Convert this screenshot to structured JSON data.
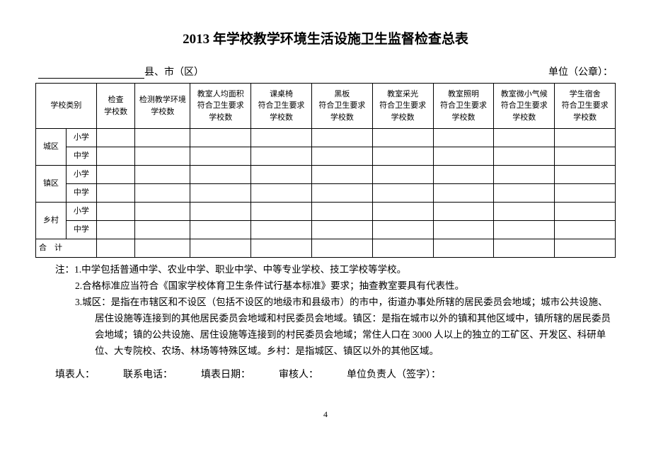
{
  "title": "2013 年学校教学环境生活设施卫生监督检查总表",
  "header": {
    "left_suffix": "县、市（区）",
    "right": "单位（公章）："
  },
  "columns": [
    "学校类别",
    "检查\n学校数",
    "检测教学环境\n学校数",
    "教室人均面积\n符合卫生要求\n学校数",
    "课桌椅\n符合卫生要求\n学校数",
    "黑板\n符合卫生要求\n学校数",
    "教室采光\n符合卫生要求\n学校数",
    "教室照明\n符合卫生要求\n学校数",
    "教室微小气候\n符合卫生要求\n学校数",
    "学生宿舍\n符合卫生要求\n学校数"
  ],
  "row_groups": [
    {
      "group": "城区",
      "subs": [
        "小学",
        "中学"
      ]
    },
    {
      "group": "镇区",
      "subs": [
        "小学",
        "中学"
      ]
    },
    {
      "group": "乡村",
      "subs": [
        "小学",
        "中学"
      ]
    }
  ],
  "total_row": "合　计",
  "notes_label": "注：",
  "notes": [
    "1.中学包括普通中学、农业中学、职业中学、中等专业学校、技工学校等学校。",
    "2.合格标准应当符合《国家学校体育卫生条件试行基本标准》要求；抽查教室要具有代表性。",
    "3.城区：是指在市辖区和不设区（包括不设区的地级市和县级市）的市中，街道办事处所辖的居民委员会地域；城市公共设施、居住设施等连接到的其他居民委员会地域和村民委员会地域。镇区：是指在城市以外的镇和其他区域中，镇所辖的居民委员会地域；镇的公共设施、居住设施等连接到的村民委员会地域；常住人口在 3000 人以上的独立的工矿区、开发区、科研单位、大专院校、农场、林场等特殊区域。乡村：是指城区、镇区以外的其他区域。"
  ],
  "footer": {
    "f1": "填表人：",
    "f2": "联系电话：",
    "f3": "填表日期：",
    "f4": "审核人：",
    "f5": "单位负责人（签字）："
  },
  "page_number": "4",
  "col_widths": [
    "5.5%",
    "5.5%",
    "7%",
    "10%",
    "11%",
    "11%",
    "11%",
    "11%",
    "11%",
    "11%",
    "11%"
  ]
}
